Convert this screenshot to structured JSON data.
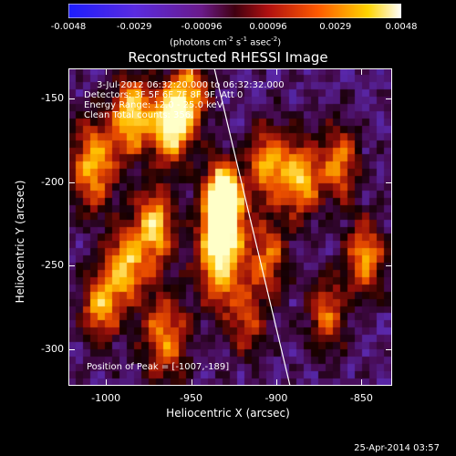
{
  "colorbar": {
    "ticks": [
      "-0.0048",
      "-0.0029",
      "-0.00096",
      "0.00096",
      "0.0029",
      "0.0048"
    ],
    "tick_values": [
      -0.0048,
      -0.0029,
      -0.00096,
      0.00096,
      0.0029,
      0.0048
    ],
    "unit_label_parts": [
      "(photons cm",
      "-2",
      " s",
      "-1",
      " asec",
      "-2",
      ")"
    ]
  },
  "image": {
    "title": "Reconstructed RHESSI Image",
    "info_lines": [
      "3-Jul-2012 06:32:20.000 to 06:32:32.000",
      "Detectors: 3F 5F 6F 7F 8F 9F, Att 0",
      "Energy Range: 12.0 - 25.0 keV",
      "Clean     Total counts: 356."
    ],
    "peak_text": "Position of Peak = [-1007,-189]"
  },
  "axes": {
    "xlabel": "Heliocentric X (arcsec)",
    "ylabel": "Heliocentric Y (arcsec)",
    "x_ticks": [
      "-1000",
      "-950",
      "-900",
      "-850"
    ],
    "y_ticks": [
      "-150",
      "-200",
      "-250",
      "-300"
    ],
    "x_range": [
      -1022,
      -832
    ],
    "y_range": [
      -322,
      -132
    ]
  },
  "footer": {
    "date": "25-Apr-2014 03:57"
  },
  "colors": {
    "background": "#000000",
    "text": "#ffffff",
    "limb_line": "#ffffff"
  }
}
